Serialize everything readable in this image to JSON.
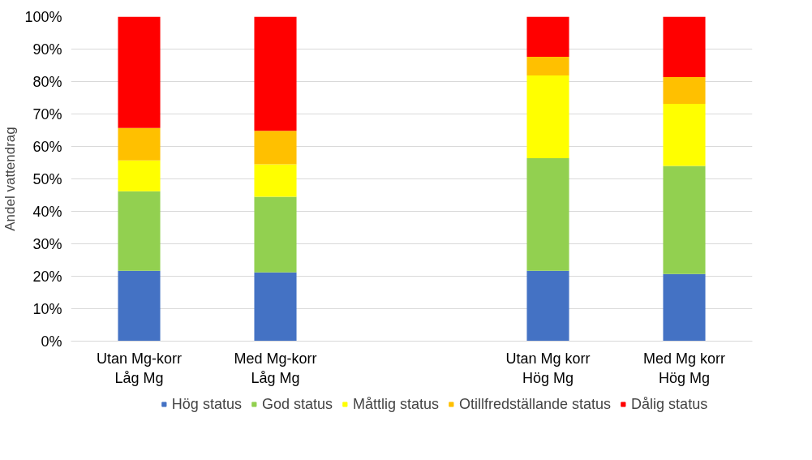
{
  "chart_data": {
    "type": "bar",
    "stacked": true,
    "ylabel": "Andel vattendrag",
    "categories": [
      "Utan Mg-korr\nLåg Mg",
      "Med Mg-korr\nLåg Mg",
      null,
      "Utan Mg korr\nHög Mg",
      "Med Mg korr\nHög Mg"
    ],
    "series": [
      {
        "name": "Hög status",
        "color": "#4472c4",
        "values": [
          21.7,
          21.2,
          null,
          21.7,
          20.7
        ]
      },
      {
        "name": "God status",
        "color": "#92d050",
        "values": [
          24.5,
          23.3,
          null,
          34.7,
          33.3
        ]
      },
      {
        "name": "Måttlig status",
        "color": "#ffff00",
        "values": [
          9.5,
          10,
          null,
          25.5,
          19.1
        ]
      },
      {
        "name": "Otillfredställande status",
        "color": "#ffc000",
        "values": [
          10,
          10.3,
          null,
          5.7,
          8.3
        ]
      },
      {
        "name": "Dålig status",
        "color": "#ff0000",
        "values": [
          34.3,
          35.2,
          null,
          12.4,
          18.6
        ]
      }
    ],
    "ylim": [
      0,
      100
    ],
    "yticks": [
      {
        "value": 0,
        "label": "0%"
      },
      {
        "value": 10,
        "label": "10%"
      },
      {
        "value": 20,
        "label": "20%"
      },
      {
        "value": 30,
        "label": "30%"
      },
      {
        "value": 40,
        "label": "40%"
      },
      {
        "value": 50,
        "label": "50%"
      },
      {
        "value": 60,
        "label": "60%"
      },
      {
        "value": 70,
        "label": "70%"
      },
      {
        "value": 80,
        "label": "80%"
      },
      {
        "value": 90,
        "label": "90%"
      },
      {
        "value": 100,
        "label": "100%"
      }
    ],
    "grid": "y",
    "legend": "bottom"
  }
}
